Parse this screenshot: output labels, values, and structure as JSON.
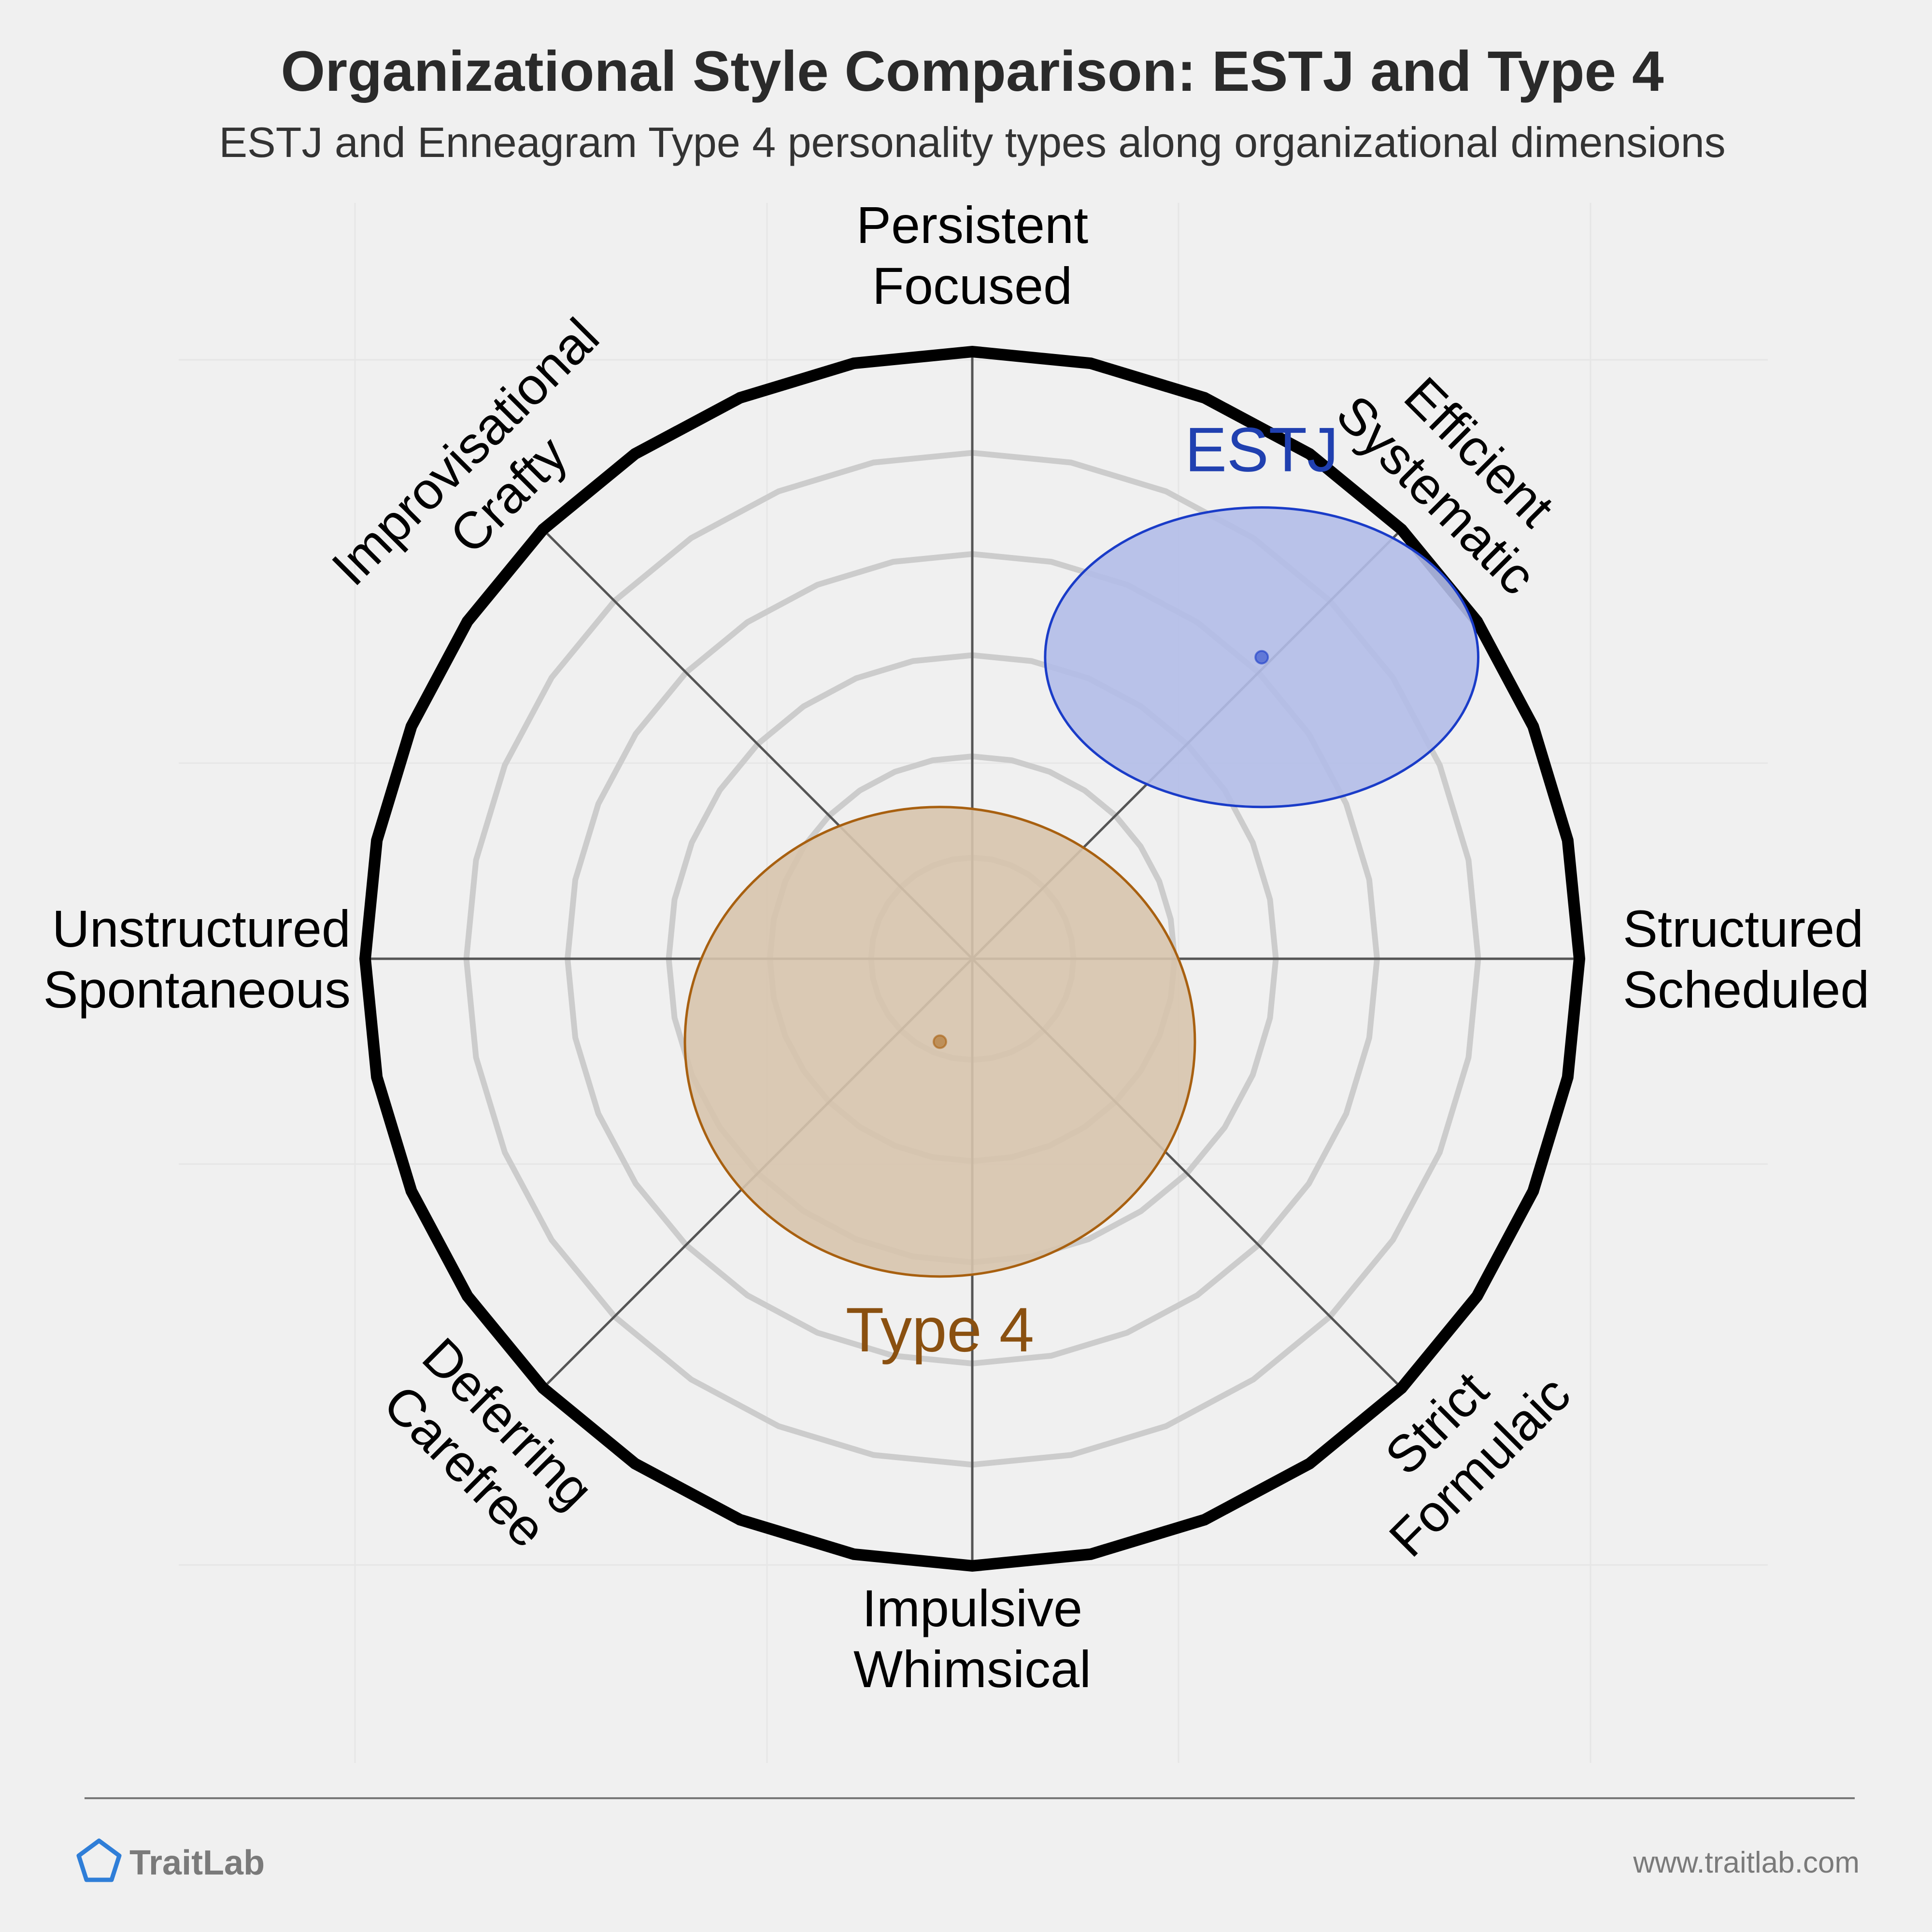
{
  "title": "Organizational Style Comparison: ESTJ and Type 4",
  "subtitle": "ESTJ and Enneagram Type 4 personality types along organizational dimensions",
  "chart_data": {
    "type": "scatter",
    "polar": true,
    "axes": [
      {
        "label_lines": [
          "Persistent",
          "Focused"
        ]
      },
      {
        "label_lines": [
          "Efficient",
          "Systematic"
        ]
      },
      {
        "label_lines": [
          "Structured",
          "Scheduled"
        ]
      },
      {
        "label_lines": [
          "Strict",
          "Formulaic"
        ]
      },
      {
        "label_lines": [
          "Impulsive",
          "Whimsical"
        ]
      },
      {
        "label_lines": [
          "Deferring",
          "Carefree"
        ]
      },
      {
        "label_lines": [
          "Unstructured",
          "Spontaneous"
        ]
      },
      {
        "label_lines": [
          "Improvisational",
          "Crafty"
        ]
      }
    ],
    "range": [
      -3,
      3
    ],
    "rings": 6,
    "series": [
      {
        "name": "ESTJ",
        "x": 1.43,
        "y": 1.49,
        "spread_x": 1.07,
        "spread_y": 0.74,
        "color": "#1a3cc8",
        "fill": "#b3bde8",
        "text_color": "#2040b0"
      },
      {
        "name": "Type 4",
        "x": -0.16,
        "y": -0.41,
        "spread_x": 1.26,
        "spread_y": 1.16,
        "color": "#a86010",
        "fill": "#d7c4ad",
        "text_color": "#8a5010"
      }
    ]
  },
  "brand": "TraitLab",
  "url": "www.traitlab.com",
  "colors": {
    "background": "#f0f0f0",
    "rim": "#000000",
    "ring": "#cccccc",
    "axis": "#555555",
    "brand_icon": "#2f7ed8"
  }
}
